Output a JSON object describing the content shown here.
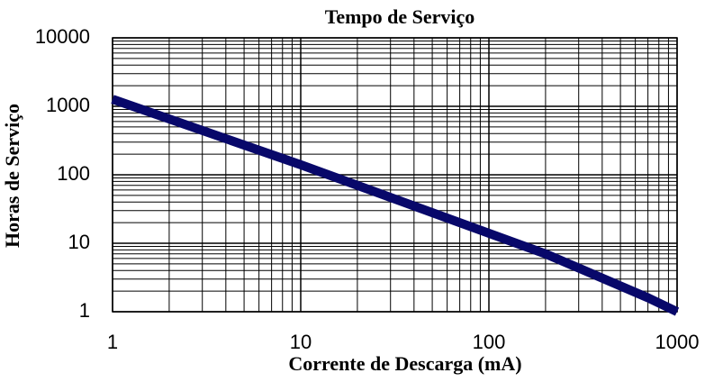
{
  "chart_data": {
    "type": "line",
    "title": "Tempo de Serviço",
    "x_label": "Corrente de Descarga (mA)",
    "y_label": "Horas de Serviço",
    "x_log": true,
    "y_log": true,
    "grid": true,
    "minor_grid": true,
    "x": [
      1,
      10,
      100,
      200,
      700,
      1000
    ],
    "series": [
      {
        "color": "#08086a",
        "values": [
          1270,
          140,
          14,
          7,
          1.6,
          1
        ]
      }
    ],
    "xlim": [
      1,
      1000
    ],
    "xticks": [
      1,
      10,
      100,
      1000
    ],
    "ylim": [
      1,
      10000
    ],
    "yticks": [
      1,
      10,
      100,
      1000,
      10000
    ]
  }
}
